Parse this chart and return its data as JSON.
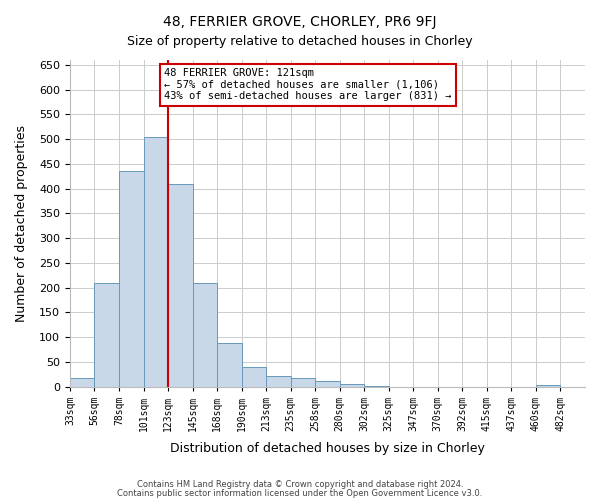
{
  "title": "48, FERRIER GROVE, CHORLEY, PR6 9FJ",
  "subtitle": "Size of property relative to detached houses in Chorley",
  "xlabel": "Distribution of detached houses by size in Chorley",
  "ylabel": "Number of detached properties",
  "footer_lines": [
    "Contains HM Land Registry data © Crown copyright and database right 2024.",
    "Contains public sector information licensed under the Open Government Licence v3.0."
  ],
  "bin_labels": [
    "33sqm",
    "56sqm",
    "78sqm",
    "101sqm",
    "123sqm",
    "145sqm",
    "168sqm",
    "190sqm",
    "213sqm",
    "235sqm",
    "258sqm",
    "280sqm",
    "302sqm",
    "325sqm",
    "347sqm",
    "370sqm",
    "392sqm",
    "415sqm",
    "437sqm",
    "460sqm",
    "482sqm"
  ],
  "bar_values": [
    18,
    210,
    435,
    505,
    410,
    210,
    88,
    40,
    22,
    18,
    12,
    5,
    1,
    0,
    0,
    0,
    0,
    0,
    0,
    3,
    0
  ],
  "bar_color": "#c8d8e8",
  "bar_edgecolor": "#6899bb",
  "property_line_x": 4,
  "property_line_color": "#cc0000",
  "annotation_text": "48 FERRIER GROVE: 121sqm\n← 57% of detached houses are smaller (1,106)\n43% of semi-detached houses are larger (831) →",
  "annotation_box_color": "#ffffff",
  "annotation_box_edgecolor": "#cc0000",
  "ylim": [
    0,
    660
  ],
  "yticks": [
    0,
    50,
    100,
    150,
    200,
    250,
    300,
    350,
    400,
    450,
    500,
    550,
    600,
    650
  ],
  "grid_color": "#cccccc",
  "background_color": "#ffffff",
  "figsize": [
    6.0,
    5.0
  ],
  "dpi": 100
}
